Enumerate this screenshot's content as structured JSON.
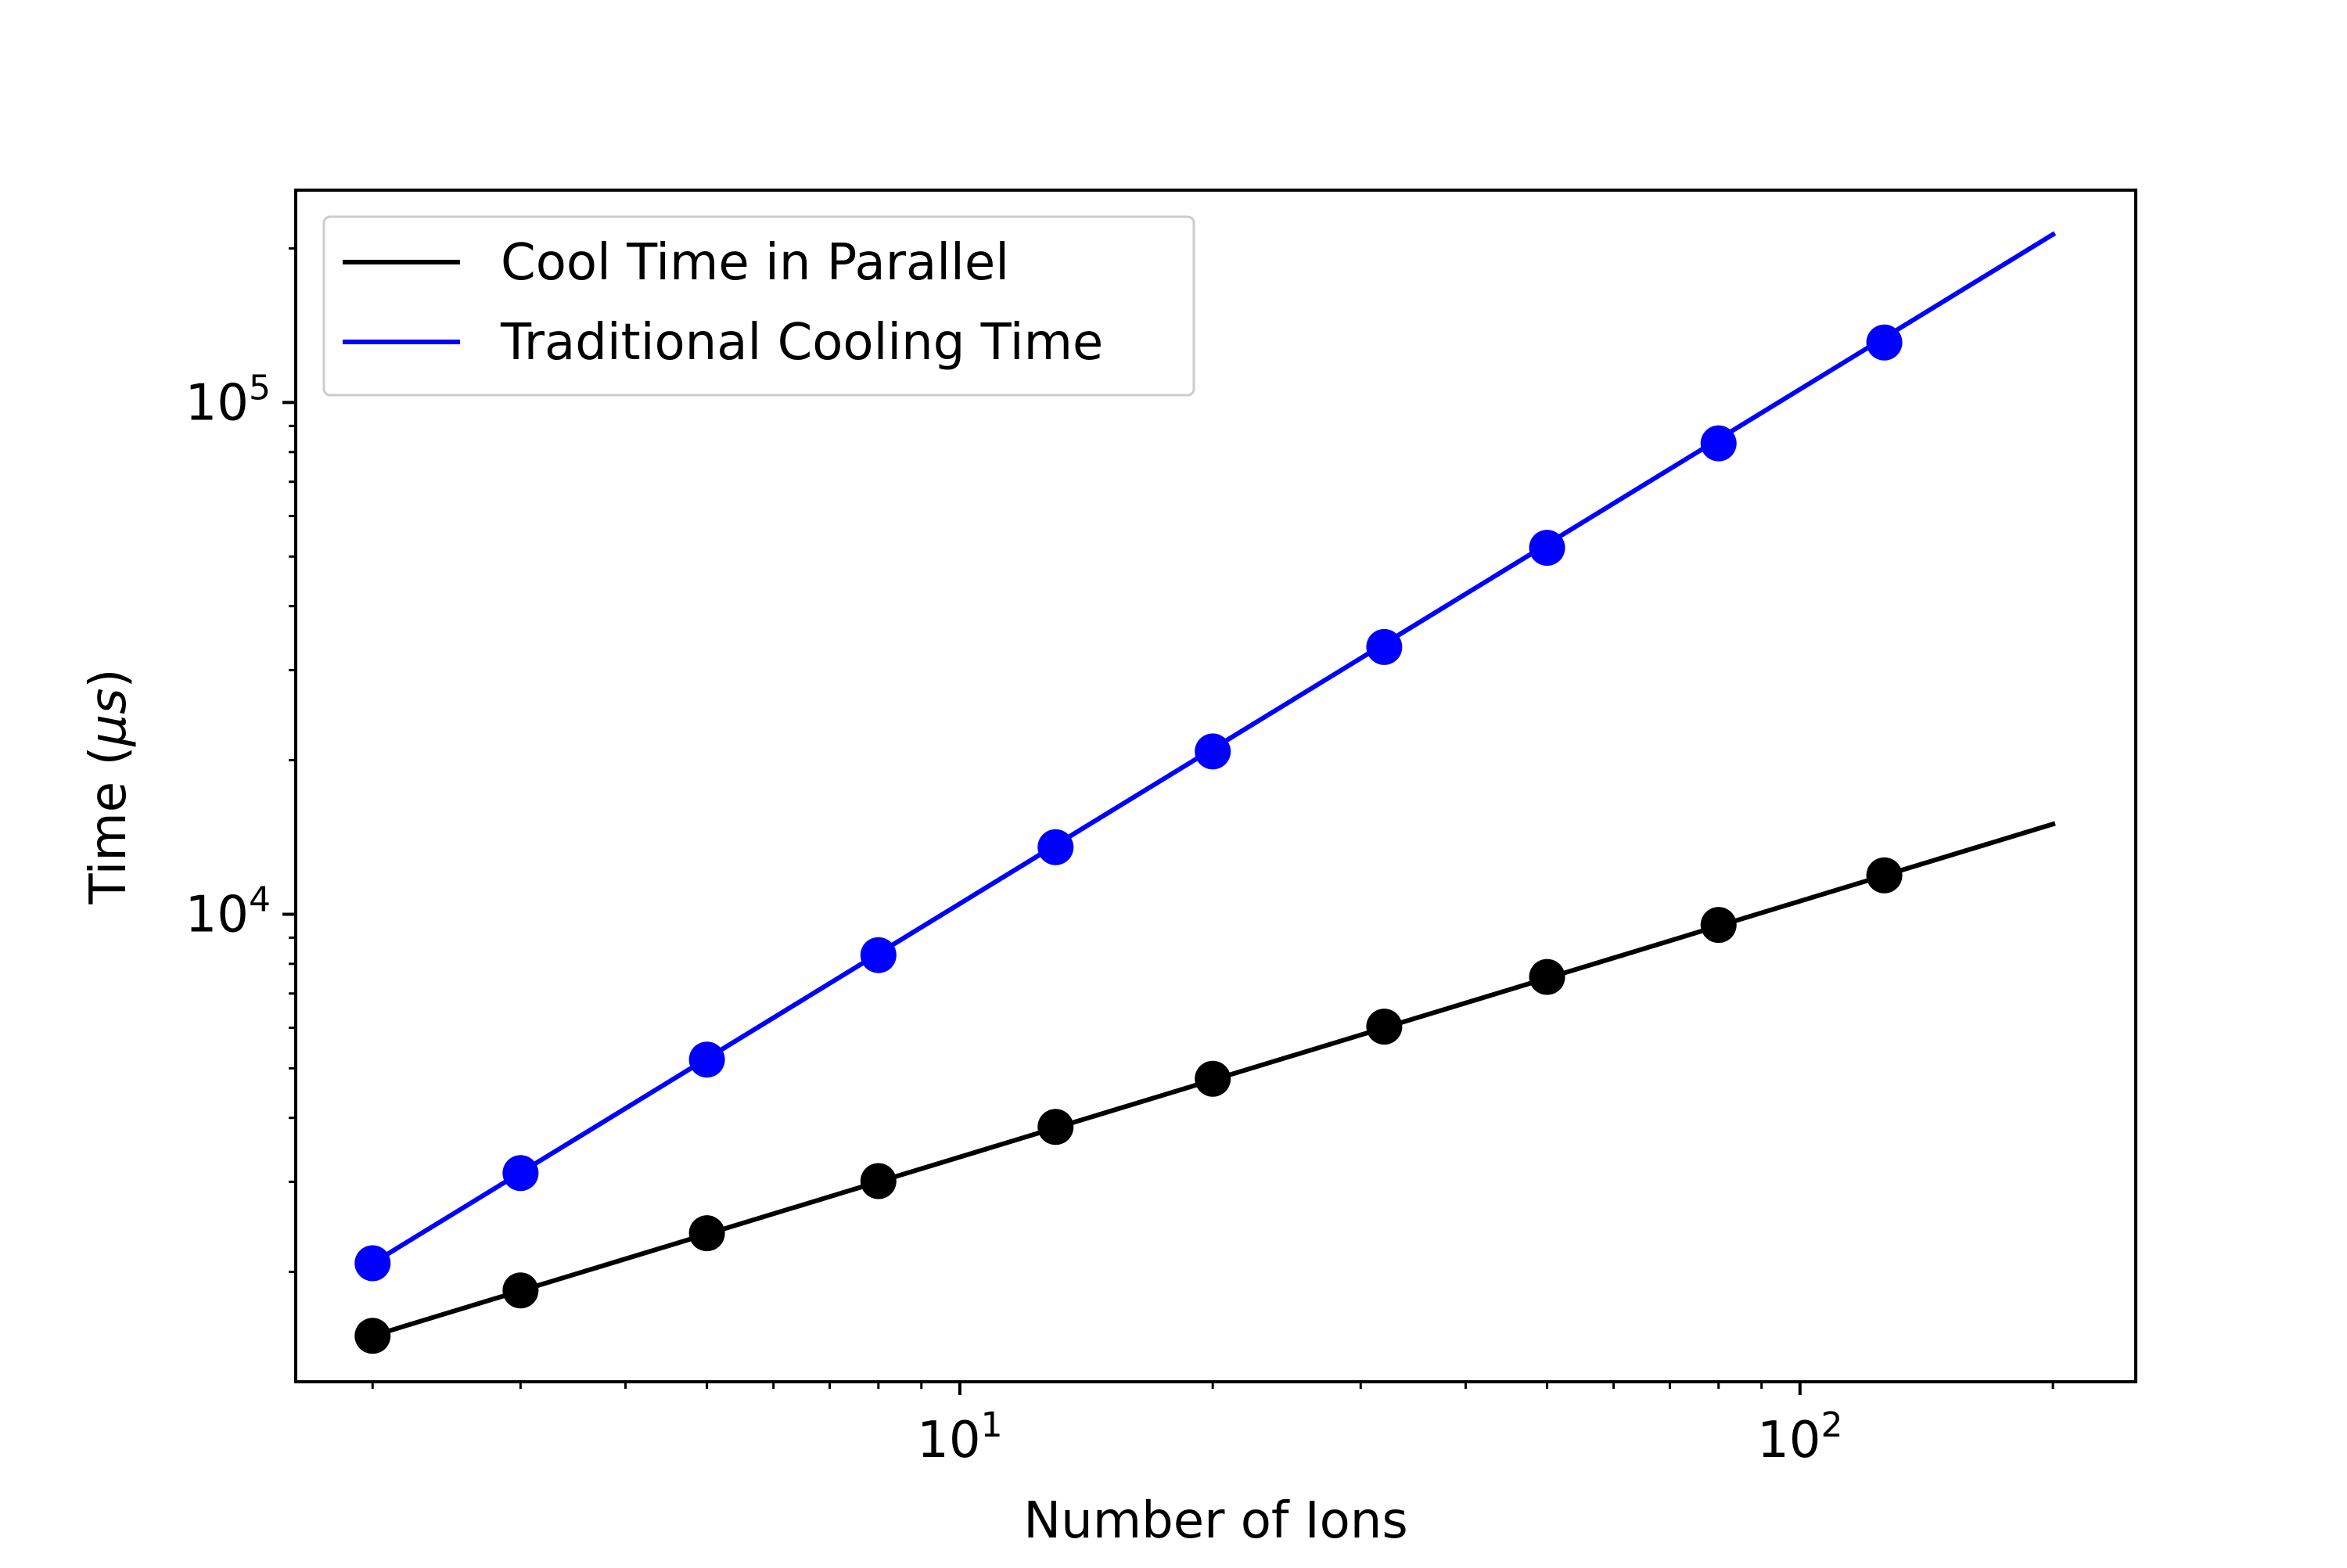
{
  "chart_data": {
    "type": "line",
    "xscale": "log",
    "yscale": "log",
    "xlabel": "Number of Ions",
    "ylabel": "Time (μs)",
    "ylabel_prefix": "Time (",
    "ylabel_symbol": "μs",
    "ylabel_suffix": ")",
    "xlim": [
      1.62,
      251
    ],
    "ylim": [
      1220,
      260000
    ],
    "grid": false,
    "legend_position": "top-left",
    "x_major_ticks": [
      {
        "value": 10,
        "base": "10",
        "exp": "1"
      },
      {
        "value": 100,
        "base": "10",
        "exp": "2"
      }
    ],
    "y_major_ticks": [
      {
        "value": 10000,
        "base": "10",
        "exp": "4"
      },
      {
        "value": 100000,
        "base": "10",
        "exp": "5"
      }
    ],
    "series": [
      {
        "name": "Cool Time in Parallel",
        "color": "#000000",
        "line_x": [
          2,
          200
        ],
        "line_y": [
          1500,
          15000
        ],
        "x": [
          2,
          3,
          5,
          8,
          13,
          20,
          32,
          50,
          80,
          126
        ],
        "y": [
          1500,
          1840,
          2380,
          3010,
          3840,
          4770,
          6030,
          7540,
          9530,
          11910
        ]
      },
      {
        "name": "Traditional Cooling Time",
        "color": "#0000ff",
        "line_x": [
          2,
          200
        ],
        "line_y": [
          2080,
          213000
        ],
        "x": [
          2,
          3,
          5,
          8,
          13,
          20,
          32,
          50,
          80,
          126
        ],
        "y": [
          2080,
          3120,
          5200,
          8320,
          13520,
          20800,
          33280,
          52000,
          83200,
          131000
        ]
      }
    ]
  }
}
